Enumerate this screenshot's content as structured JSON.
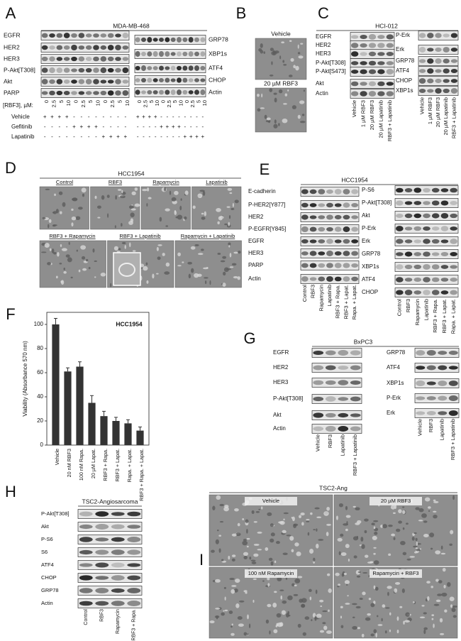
{
  "panels": {
    "A": {
      "letter": "A",
      "title": "MDA-MB-468",
      "left_blots": [
        "EGFR",
        "HER2",
        "HER3",
        "P-Akt[T308]",
        "Akt",
        "PARP"
      ],
      "right_blots": [
        "GRP78",
        "XBP1s",
        "ATF4",
        "CHOP",
        "Actin"
      ],
      "dose_label": "[RBF3], µM:",
      "doses": [
        0,
        2.5,
        5,
        10,
        0,
        2.5,
        5,
        10,
        0,
        2.5,
        5,
        10
      ],
      "treatments": [
        {
          "name": "Vehicle",
          "signs": [
            "+",
            "+",
            "+",
            "+",
            "-",
            "-",
            "-",
            "-",
            "-",
            "-",
            "-",
            "-"
          ]
        },
        {
          "name": "Gefitinib",
          "signs": [
            "-",
            "-",
            "-",
            "-",
            "+",
            "+",
            "+",
            "+",
            "-",
            "-",
            "-",
            "-"
          ]
        },
        {
          "name": "Lapatinib",
          "signs": [
            "-",
            "-",
            "-",
            "-",
            "-",
            "-",
            "-",
            "-",
            "+",
            "+",
            "+",
            "+"
          ]
        }
      ]
    },
    "B": {
      "letter": "B",
      "images": [
        "Vehicle",
        "20 µM RBF3"
      ]
    },
    "C": {
      "letter": "C",
      "title": "HCI-012",
      "left_blots": [
        "EGFR",
        "HER2",
        "HER3",
        "P-Akt[T308]",
        "P-Akt[S473]",
        "Akt",
        "Actin"
      ],
      "right_blots": [
        "P-Erk",
        "Erk",
        "GRP78",
        "ATF4",
        "CHOP",
        "XBP1s"
      ],
      "lanes": [
        "Vehicle",
        "1 µM RBF3",
        "20 µM RBF3",
        "20 µM Lapatinib",
        "RBF3 + Lapatinib"
      ]
    },
    "D": {
      "letter": "D",
      "title": "HCC1954",
      "images": [
        "Control",
        "RBF3",
        "Rapamycin",
        "Lapatinib",
        "RBF3 + Rapamycin",
        "RBF3 + Lapatinib",
        "Rapamycin + Lapatinib"
      ]
    },
    "E": {
      "letter": "E",
      "title": "HCC1954",
      "left_blots": [
        "E-cadherin",
        "P-HER2[Y877]",
        "HER2",
        "P-EGFR[Y845]",
        "EGFR",
        "HER3",
        "PARP",
        "Actin"
      ],
      "right_blots": [
        "P-S6",
        "P-Akt[T308]",
        "Akt",
        "P-Erk",
        "Erk",
        "GRP78",
        "XBP1s",
        "ATF4",
        "CHOP"
      ],
      "lanes": [
        "Control",
        "RBF3",
        "Rapamycin",
        "Lapatinib",
        "RBF3 + Rapa.",
        "RBF3 + Lapat.",
        "Rapa. + Lapat."
      ]
    },
    "F": {
      "letter": "F"
    },
    "G": {
      "letter": "G",
      "title": "BxPC3",
      "left_blots": [
        "EGFR",
        "HER2",
        "HER3",
        "P-Akt[T308]",
        "Akt",
        "Actin"
      ],
      "right_blots": [
        "GRP78",
        "ATF4",
        "XBP1s",
        "P-Erk",
        "Erk"
      ],
      "lanes": [
        "Vehicle",
        "RBF3",
        "Lapatinib",
        "RBF3 + Lapatinib"
      ]
    },
    "H": {
      "letter": "H",
      "title": "TSC2-Angiosarcoma",
      "blots": [
        "P-Akt[T308]",
        "Akt",
        "P-S6",
        "S6",
        "ATF4",
        "CHOP",
        "GRP78",
        "Actin"
      ],
      "lanes": [
        "Control",
        "RBF3",
        "Rapamycin",
        "RBF3 + Rapa."
      ]
    },
    "I": {
      "letter": "I",
      "title": "TSC2-Ang",
      "images": [
        "Vehicle",
        "20 µM RBF3",
        "100 nM Rapamycin",
        "Rapamycin + RBF3"
      ]
    }
  },
  "chart_data": {
    "type": "bar",
    "title": "HCC1954",
    "y_label": "Viability (Absorbance 570 nm)",
    "categories": [
      "Vehicle",
      "20 nM RBF3",
      "100 nM Rapa.",
      "20 µM Lapat.",
      "RBF3 + Rapa.",
      "RBF3 + Lapat.",
      "Rapa. + Lapat.",
      "RBF3 + Rapa. + Lapat."
    ],
    "values": [
      100,
      61,
      65,
      35,
      24,
      20,
      18,
      12
    ],
    "errors": [
      5,
      3,
      4,
      6,
      4,
      3,
      3,
      3
    ],
    "color": "#333333",
    "ylim": [
      0,
      110
    ],
    "yticks": [
      0,
      20,
      40,
      60,
      80,
      100
    ]
  }
}
